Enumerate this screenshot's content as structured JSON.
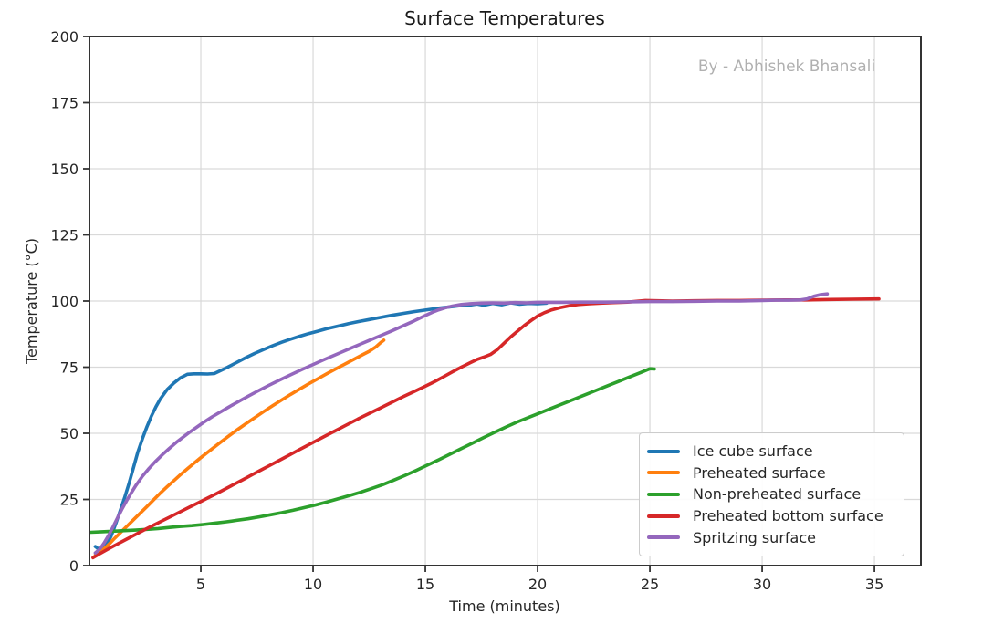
{
  "figure": {
    "title": "Surface Temperatures",
    "watermark": "By - Abhishek Bhansali",
    "watermark_color": "#b0b0b0",
    "text_color": "#262626",
    "grid_color": "#d9d9d9",
    "spine_color": "#333333",
    "background_color": "#ffffff"
  },
  "chart_data": {
    "type": "line",
    "title": "Surface Temperatures",
    "xlabel": "Time (minutes)",
    "ylabel": "Temperature (°C)",
    "xlim": [
      0.04,
      37.07
    ],
    "ylim": [
      0,
      200
    ],
    "xticks": [
      5,
      10,
      15,
      20,
      25,
      30,
      35
    ],
    "yticks": [
      0,
      25,
      50,
      75,
      100,
      125,
      150,
      175,
      200
    ],
    "grid": true,
    "legend_position": "lower right",
    "series": [
      {
        "name": "Ice cube surface",
        "color": "#1f77b4",
        "points": [
          [
            0.3,
            7.2
          ],
          [
            0.45,
            6.2
          ],
          [
            0.6,
            6.6
          ],
          [
            0.8,
            8.0
          ],
          [
            1.0,
            11.0
          ],
          [
            1.2,
            15.5
          ],
          [
            1.4,
            20.5
          ],
          [
            1.6,
            25.5
          ],
          [
            1.8,
            31.0
          ],
          [
            2.0,
            37.0
          ],
          [
            2.2,
            43.0
          ],
          [
            2.4,
            48.0
          ],
          [
            2.6,
            52.5
          ],
          [
            2.8,
            56.5
          ],
          [
            3.0,
            60.0
          ],
          [
            3.2,
            63.0
          ],
          [
            3.5,
            66.5
          ],
          [
            3.8,
            69.0
          ],
          [
            4.1,
            71.0
          ],
          [
            4.4,
            72.3
          ],
          [
            4.7,
            72.5
          ],
          [
            5.0,
            72.5
          ],
          [
            5.3,
            72.4
          ],
          [
            5.6,
            72.6
          ],
          [
            5.9,
            73.8
          ],
          [
            6.2,
            75.0
          ],
          [
            6.6,
            76.8
          ],
          [
            7.0,
            78.6
          ],
          [
            7.4,
            80.2
          ],
          [
            7.8,
            81.7
          ],
          [
            8.2,
            83.1
          ],
          [
            8.6,
            84.4
          ],
          [
            9.0,
            85.6
          ],
          [
            9.4,
            86.7
          ],
          [
            9.8,
            87.7
          ],
          [
            10.2,
            88.6
          ],
          [
            10.6,
            89.5
          ],
          [
            11.0,
            90.3
          ],
          [
            11.5,
            91.3
          ],
          [
            12.0,
            92.2
          ],
          [
            12.5,
            93.0
          ],
          [
            13.0,
            93.8
          ],
          [
            13.5,
            94.6
          ],
          [
            14.0,
            95.3
          ],
          [
            14.5,
            96.0
          ],
          [
            15.0,
            96.6
          ],
          [
            15.5,
            97.2
          ],
          [
            16.0,
            97.7
          ],
          [
            16.5,
            98.2
          ],
          [
            17.0,
            98.5
          ],
          [
            17.3,
            98.9
          ],
          [
            17.6,
            98.4
          ],
          [
            18.0,
            99.1
          ],
          [
            18.4,
            98.6
          ],
          [
            18.8,
            99.3
          ],
          [
            19.2,
            98.8
          ],
          [
            19.6,
            99.1
          ],
          [
            20.0,
            99.0
          ],
          [
            20.4,
            99.2
          ]
        ]
      },
      {
        "name": "Preheated surface",
        "color": "#ff7f0e",
        "points": [
          [
            0.3,
            4.0
          ],
          [
            0.5,
            5.0
          ],
          [
            0.7,
            6.4
          ],
          [
            0.9,
            8.0
          ],
          [
            1.1,
            9.8
          ],
          [
            1.4,
            12.3
          ],
          [
            1.7,
            14.8
          ],
          [
            2.0,
            17.3
          ],
          [
            2.3,
            19.8
          ],
          [
            2.6,
            22.3
          ],
          [
            2.9,
            24.9
          ],
          [
            3.2,
            27.4
          ],
          [
            3.5,
            29.8
          ],
          [
            3.8,
            32.1
          ],
          [
            4.1,
            34.4
          ],
          [
            4.4,
            36.6
          ],
          [
            4.7,
            38.7
          ],
          [
            5.0,
            40.8
          ],
          [
            5.4,
            43.5
          ],
          [
            5.8,
            46.1
          ],
          [
            6.2,
            48.7
          ],
          [
            6.6,
            51.2
          ],
          [
            7.0,
            53.6
          ],
          [
            7.4,
            55.9
          ],
          [
            7.8,
            58.2
          ],
          [
            8.2,
            60.4
          ],
          [
            8.6,
            62.6
          ],
          [
            9.0,
            64.7
          ],
          [
            9.4,
            66.7
          ],
          [
            9.8,
            68.7
          ],
          [
            10.2,
            70.6
          ],
          [
            10.6,
            72.5
          ],
          [
            11.0,
            74.3
          ],
          [
            11.4,
            76.1
          ],
          [
            11.8,
            77.9
          ],
          [
            12.2,
            79.7
          ],
          [
            12.5,
            81.0
          ],
          [
            12.8,
            82.7
          ],
          [
            13.0,
            84.2
          ],
          [
            13.15,
            85.2
          ]
        ]
      },
      {
        "name": "Non-preheated surface",
        "color": "#2ca02c",
        "points": [
          [
            0.1,
            12.6
          ],
          [
            0.6,
            12.8
          ],
          [
            1.1,
            13.0
          ],
          [
            1.6,
            13.2
          ],
          [
            2.1,
            13.4
          ],
          [
            2.6,
            13.7
          ],
          [
            3.1,
            14.0
          ],
          [
            3.6,
            14.4
          ],
          [
            4.1,
            14.8
          ],
          [
            4.6,
            15.1
          ],
          [
            5.1,
            15.5
          ],
          [
            5.6,
            16.0
          ],
          [
            6.1,
            16.5
          ],
          [
            6.6,
            17.1
          ],
          [
            7.1,
            17.7
          ],
          [
            7.6,
            18.4
          ],
          [
            8.1,
            19.2
          ],
          [
            8.6,
            20.0
          ],
          [
            9.1,
            20.9
          ],
          [
            9.6,
            21.9
          ],
          [
            10.1,
            22.9
          ],
          [
            10.6,
            24.0
          ],
          [
            11.1,
            25.2
          ],
          [
            11.6,
            26.4
          ],
          [
            12.1,
            27.7
          ],
          [
            12.6,
            29.1
          ],
          [
            13.1,
            30.6
          ],
          [
            13.6,
            32.3
          ],
          [
            14.1,
            34.1
          ],
          [
            14.6,
            36.0
          ],
          [
            15.1,
            38.0
          ],
          [
            15.6,
            40.0
          ],
          [
            16.1,
            42.1
          ],
          [
            16.6,
            44.2
          ],
          [
            17.1,
            46.3
          ],
          [
            17.6,
            48.4
          ],
          [
            18.1,
            50.4
          ],
          [
            18.6,
            52.4
          ],
          [
            19.1,
            54.3
          ],
          [
            19.6,
            56.0
          ],
          [
            20.1,
            57.7
          ],
          [
            20.6,
            59.4
          ],
          [
            21.1,
            61.1
          ],
          [
            21.6,
            62.8
          ],
          [
            22.1,
            64.5
          ],
          [
            22.6,
            66.2
          ],
          [
            23.1,
            67.9
          ],
          [
            23.6,
            69.6
          ],
          [
            24.1,
            71.3
          ],
          [
            24.6,
            73.0
          ],
          [
            25.0,
            74.4
          ],
          [
            25.2,
            74.3
          ]
        ]
      },
      {
        "name": "Preheated bottom surface",
        "color": "#d62728",
        "points": [
          [
            0.2,
            3.0
          ],
          [
            0.5,
            4.5
          ],
          [
            0.9,
            6.4
          ],
          [
            1.3,
            8.2
          ],
          [
            1.7,
            10.0
          ],
          [
            2.1,
            11.8
          ],
          [
            2.5,
            13.6
          ],
          [
            2.9,
            15.3
          ],
          [
            3.3,
            17.0
          ],
          [
            3.7,
            18.7
          ],
          [
            4.1,
            20.4
          ],
          [
            4.5,
            22.1
          ],
          [
            4.9,
            23.8
          ],
          [
            5.3,
            25.5
          ],
          [
            5.7,
            27.2
          ],
          [
            6.1,
            29.0
          ],
          [
            6.5,
            30.8
          ],
          [
            6.9,
            32.6
          ],
          [
            7.3,
            34.4
          ],
          [
            7.7,
            36.2
          ],
          [
            8.1,
            38.0
          ],
          [
            8.5,
            39.8
          ],
          [
            8.9,
            41.6
          ],
          [
            9.3,
            43.4
          ],
          [
            9.7,
            45.2
          ],
          [
            10.1,
            47.0
          ],
          [
            10.5,
            48.8
          ],
          [
            11.0,
            51.0
          ],
          [
            11.5,
            53.2
          ],
          [
            12.0,
            55.4
          ],
          [
            12.5,
            57.5
          ],
          [
            13.0,
            59.6
          ],
          [
            13.5,
            61.7
          ],
          [
            14.0,
            63.8
          ],
          [
            14.5,
            65.8
          ],
          [
            15.0,
            67.8
          ],
          [
            15.4,
            69.5
          ],
          [
            15.8,
            71.3
          ],
          [
            16.2,
            73.2
          ],
          [
            16.6,
            75.0
          ],
          [
            17.0,
            76.7
          ],
          [
            17.3,
            77.9
          ],
          [
            17.6,
            78.8
          ],
          [
            17.9,
            79.8
          ],
          [
            18.2,
            81.6
          ],
          [
            18.5,
            84.0
          ],
          [
            18.8,
            86.4
          ],
          [
            19.1,
            88.6
          ],
          [
            19.4,
            90.7
          ],
          [
            19.7,
            92.6
          ],
          [
            20.0,
            94.3
          ],
          [
            20.3,
            95.6
          ],
          [
            20.6,
            96.6
          ],
          [
            21.0,
            97.5
          ],
          [
            21.4,
            98.2
          ],
          [
            21.8,
            98.7
          ],
          [
            22.3,
            99.0
          ],
          [
            22.8,
            99.2
          ],
          [
            23.4,
            99.4
          ],
          [
            24.0,
            99.6
          ],
          [
            24.4,
            99.9
          ],
          [
            24.8,
            100.2
          ],
          [
            25.3,
            100.1
          ],
          [
            26.0,
            100.0
          ],
          [
            27.0,
            100.1
          ],
          [
            28.0,
            100.2
          ],
          [
            29.0,
            100.2
          ],
          [
            30.0,
            100.3
          ],
          [
            31.0,
            100.4
          ],
          [
            32.0,
            100.4
          ],
          [
            33.0,
            100.6
          ],
          [
            34.0,
            100.7
          ],
          [
            35.2,
            100.8
          ]
        ]
      },
      {
        "name": "Spritzing surface",
        "color": "#9467bd",
        "points": [
          [
            0.3,
            4.8
          ],
          [
            0.5,
            6.2
          ],
          [
            0.7,
            8.6
          ],
          [
            0.9,
            11.5
          ],
          [
            1.1,
            14.8
          ],
          [
            1.3,
            18.2
          ],
          [
            1.5,
            21.5
          ],
          [
            1.7,
            24.6
          ],
          [
            1.9,
            27.5
          ],
          [
            2.1,
            30.2
          ],
          [
            2.4,
            33.8
          ],
          [
            2.7,
            36.8
          ],
          [
            3.0,
            39.5
          ],
          [
            3.3,
            42.0
          ],
          [
            3.6,
            44.3
          ],
          [
            3.9,
            46.5
          ],
          [
            4.2,
            48.5
          ],
          [
            4.5,
            50.4
          ],
          [
            4.8,
            52.2
          ],
          [
            5.1,
            54.0
          ],
          [
            5.5,
            56.2
          ],
          [
            5.9,
            58.2
          ],
          [
            6.3,
            60.2
          ],
          [
            6.7,
            62.1
          ],
          [
            7.1,
            64.0
          ],
          [
            7.5,
            65.8
          ],
          [
            8.0,
            68.0
          ],
          [
            8.5,
            70.1
          ],
          [
            9.0,
            72.1
          ],
          [
            9.5,
            74.1
          ],
          [
            10.0,
            76.0
          ],
          [
            10.5,
            77.9
          ],
          [
            11.0,
            79.7
          ],
          [
            11.5,
            81.5
          ],
          [
            12.0,
            83.3
          ],
          [
            12.5,
            85.1
          ],
          [
            13.0,
            86.9
          ],
          [
            13.5,
            88.7
          ],
          [
            14.0,
            90.6
          ],
          [
            14.5,
            92.5
          ],
          [
            15.0,
            94.5
          ],
          [
            15.3,
            95.7
          ],
          [
            15.6,
            96.7
          ],
          [
            15.9,
            97.5
          ],
          [
            16.2,
            98.1
          ],
          [
            16.6,
            98.7
          ],
          [
            17.0,
            99.0
          ],
          [
            17.5,
            99.2
          ],
          [
            18.0,
            99.3
          ],
          [
            18.5,
            99.2
          ],
          [
            19.0,
            99.4
          ],
          [
            19.5,
            99.3
          ],
          [
            20.0,
            99.5
          ],
          [
            21.0,
            99.5
          ],
          [
            22.0,
            99.6
          ],
          [
            23.0,
            99.6
          ],
          [
            24.0,
            99.7
          ],
          [
            25.0,
            99.8
          ],
          [
            26.0,
            99.8
          ],
          [
            27.0,
            99.9
          ],
          [
            28.0,
            100.0
          ],
          [
            29.0,
            100.0
          ],
          [
            30.0,
            100.2
          ],
          [
            30.6,
            100.3
          ],
          [
            31.2,
            100.3
          ],
          [
            31.7,
            100.4
          ],
          [
            32.0,
            100.8
          ],
          [
            32.3,
            101.8
          ],
          [
            32.6,
            102.4
          ],
          [
            32.9,
            102.7
          ]
        ]
      }
    ]
  }
}
